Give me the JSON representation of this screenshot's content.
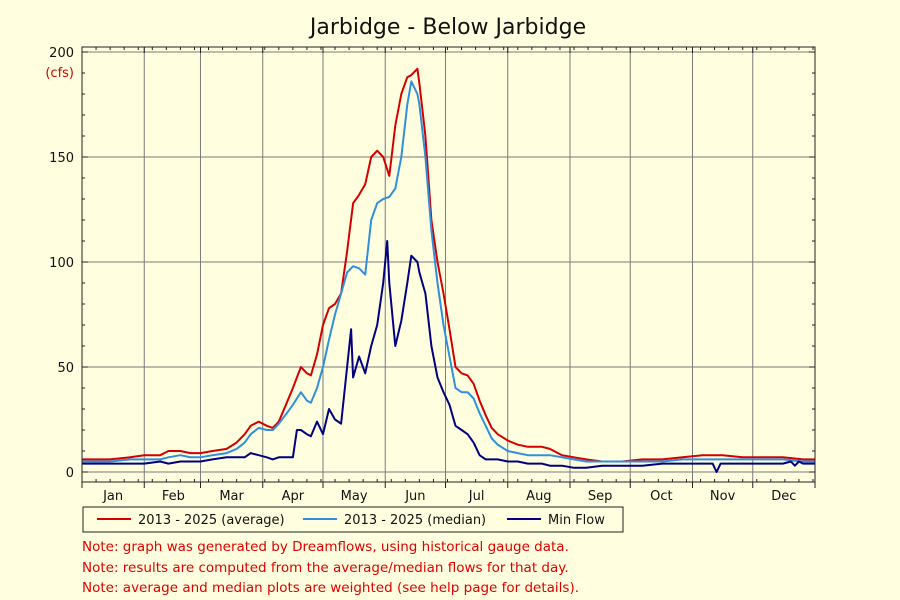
{
  "chart_data": {
    "type": "line",
    "title": "Jarbidge - Below Jarbidge",
    "ylabel": "(cfs)",
    "xlabel": "",
    "ylim": [
      0,
      200
    ],
    "xlim": [
      1,
      366
    ],
    "grid": true,
    "yticks": [
      0,
      50,
      100,
      150,
      200
    ],
    "months": [
      "Jan",
      "Feb",
      "Mar",
      "Apr",
      "May",
      "Jun",
      "Jul",
      "Aug",
      "Sep",
      "Oct",
      "Nov",
      "Dec"
    ],
    "x_unit": "day of year",
    "legend_position": "bottom-left",
    "series": [
      {
        "name": "2013 - 2025 (average)",
        "color": "#d40000",
        "points": [
          [
            1,
            6
          ],
          [
            15,
            6
          ],
          [
            25,
            7
          ],
          [
            32,
            8
          ],
          [
            40,
            8
          ],
          [
            44,
            10
          ],
          [
            50,
            10
          ],
          [
            55,
            9
          ],
          [
            60,
            9
          ],
          [
            66,
            10
          ],
          [
            73,
            11
          ],
          [
            78,
            14
          ],
          [
            82,
            18
          ],
          [
            85,
            22
          ],
          [
            89,
            24
          ],
          [
            93,
            22
          ],
          [
            96,
            21
          ],
          [
            99,
            24
          ],
          [
            103,
            33
          ],
          [
            106,
            40
          ],
          [
            110,
            50
          ],
          [
            113,
            47
          ],
          [
            115,
            46
          ],
          [
            118,
            56
          ],
          [
            121,
            70
          ],
          [
            124,
            78
          ],
          [
            127,
            80
          ],
          [
            130,
            85
          ],
          [
            133,
            105
          ],
          [
            136,
            128
          ],
          [
            139,
            132
          ],
          [
            142,
            137
          ],
          [
            145,
            150
          ],
          [
            148,
            153
          ],
          [
            151,
            150
          ],
          [
            154,
            141
          ],
          [
            157,
            165
          ],
          [
            160,
            180
          ],
          [
            163,
            188
          ],
          [
            165,
            189
          ],
          [
            168,
            192
          ],
          [
            169,
            185
          ],
          [
            172,
            160
          ],
          [
            175,
            120
          ],
          [
            178,
            100
          ],
          [
            181,
            85
          ],
          [
            184,
            68
          ],
          [
            187,
            50
          ],
          [
            190,
            47
          ],
          [
            193,
            46
          ],
          [
            196,
            42
          ],
          [
            199,
            34
          ],
          [
            202,
            27
          ],
          [
            205,
            21
          ],
          [
            208,
            18
          ],
          [
            213,
            15
          ],
          [
            218,
            13
          ],
          [
            223,
            12
          ],
          [
            230,
            12
          ],
          [
            234,
            11
          ],
          [
            240,
            8
          ],
          [
            246,
            7
          ],
          [
            252,
            6
          ],
          [
            260,
            5
          ],
          [
            270,
            5
          ],
          [
            280,
            6
          ],
          [
            290,
            6
          ],
          [
            300,
            7
          ],
          [
            310,
            8
          ],
          [
            320,
            8
          ],
          [
            330,
            7
          ],
          [
            340,
            7
          ],
          [
            350,
            7
          ],
          [
            360,
            6
          ],
          [
            366,
            6
          ]
        ]
      },
      {
        "name": "2013 - 2025 (median)",
        "color": "#2f8fdc",
        "points": [
          [
            1,
            5
          ],
          [
            15,
            5
          ],
          [
            25,
            6
          ],
          [
            32,
            6
          ],
          [
            40,
            6
          ],
          [
            44,
            7
          ],
          [
            50,
            8
          ],
          [
            55,
            7
          ],
          [
            60,
            7
          ],
          [
            66,
            8
          ],
          [
            73,
            9
          ],
          [
            78,
            11
          ],
          [
            82,
            14
          ],
          [
            85,
            18
          ],
          [
            89,
            21
          ],
          [
            93,
            20
          ],
          [
            96,
            20
          ],
          [
            99,
            23
          ],
          [
            103,
            28
          ],
          [
            106,
            32
          ],
          [
            110,
            38
          ],
          [
            113,
            34
          ],
          [
            115,
            33
          ],
          [
            118,
            40
          ],
          [
            121,
            50
          ],
          [
            124,
            63
          ],
          [
            127,
            75
          ],
          [
            130,
            85
          ],
          [
            133,
            95
          ],
          [
            136,
            98
          ],
          [
            139,
            97
          ],
          [
            142,
            94
          ],
          [
            145,
            120
          ],
          [
            148,
            128
          ],
          [
            151,
            130
          ],
          [
            154,
            131
          ],
          [
            157,
            135
          ],
          [
            160,
            150
          ],
          [
            163,
            175
          ],
          [
            165,
            186
          ],
          [
            168,
            180
          ],
          [
            169,
            175
          ],
          [
            172,
            150
          ],
          [
            175,
            115
          ],
          [
            178,
            90
          ],
          [
            181,
            70
          ],
          [
            184,
            55
          ],
          [
            187,
            40
          ],
          [
            190,
            38
          ],
          [
            193,
            38
          ],
          [
            196,
            35
          ],
          [
            199,
            28
          ],
          [
            202,
            22
          ],
          [
            205,
            16
          ],
          [
            208,
            13
          ],
          [
            213,
            10
          ],
          [
            218,
            9
          ],
          [
            223,
            8
          ],
          [
            230,
            8
          ],
          [
            234,
            8
          ],
          [
            240,
            7
          ],
          [
            246,
            6
          ],
          [
            252,
            5
          ],
          [
            260,
            5
          ],
          [
            270,
            5
          ],
          [
            280,
            5
          ],
          [
            290,
            5
          ],
          [
            300,
            6
          ],
          [
            310,
            6
          ],
          [
            320,
            6
          ],
          [
            330,
            6
          ],
          [
            340,
            6
          ],
          [
            350,
            6
          ],
          [
            360,
            5
          ],
          [
            366,
            5
          ]
        ]
      },
      {
        "name": "Min Flow",
        "color": "#000080",
        "points": [
          [
            1,
            4
          ],
          [
            15,
            4
          ],
          [
            25,
            4
          ],
          [
            32,
            4
          ],
          [
            40,
            5
          ],
          [
            44,
            4
          ],
          [
            50,
            5
          ],
          [
            55,
            5
          ],
          [
            60,
            5
          ],
          [
            66,
            6
          ],
          [
            73,
            7
          ],
          [
            78,
            7
          ],
          [
            82,
            7
          ],
          [
            85,
            9
          ],
          [
            89,
            8
          ],
          [
            93,
            7
          ],
          [
            96,
            6
          ],
          [
            99,
            7
          ],
          [
            103,
            7
          ],
          [
            106,
            7
          ],
          [
            108,
            20
          ],
          [
            110,
            20
          ],
          [
            113,
            18
          ],
          [
            115,
            17
          ],
          [
            118,
            24
          ],
          [
            121,
            18
          ],
          [
            124,
            30
          ],
          [
            127,
            25
          ],
          [
            130,
            23
          ],
          [
            133,
            50
          ],
          [
            135,
            68
          ],
          [
            136,
            45
          ],
          [
            139,
            55
          ],
          [
            142,
            47
          ],
          [
            145,
            60
          ],
          [
            148,
            70
          ],
          [
            151,
            90
          ],
          [
            153,
            110
          ],
          [
            154,
            90
          ],
          [
            157,
            60
          ],
          [
            160,
            72
          ],
          [
            163,
            90
          ],
          [
            165,
            103
          ],
          [
            168,
            100
          ],
          [
            169,
            95
          ],
          [
            172,
            85
          ],
          [
            175,
            60
          ],
          [
            178,
            45
          ],
          [
            181,
            38
          ],
          [
            184,
            32
          ],
          [
            187,
            22
          ],
          [
            190,
            20
          ],
          [
            193,
            18
          ],
          [
            196,
            14
          ],
          [
            199,
            8
          ],
          [
            202,
            6
          ],
          [
            205,
            6
          ],
          [
            208,
            6
          ],
          [
            213,
            5
          ],
          [
            218,
            5
          ],
          [
            223,
            4
          ],
          [
            230,
            4
          ],
          [
            234,
            3
          ],
          [
            240,
            3
          ],
          [
            246,
            2
          ],
          [
            252,
            2
          ],
          [
            260,
            3
          ],
          [
            270,
            3
          ],
          [
            280,
            3
          ],
          [
            290,
            4
          ],
          [
            300,
            4
          ],
          [
            310,
            4
          ],
          [
            315,
            4
          ],
          [
            317,
            0
          ],
          [
            319,
            4
          ],
          [
            325,
            4
          ],
          [
            330,
            4
          ],
          [
            340,
            4
          ],
          [
            350,
            4
          ],
          [
            354,
            5
          ],
          [
            356,
            3
          ],
          [
            358,
            5
          ],
          [
            360,
            4
          ],
          [
            366,
            4
          ]
        ]
      }
    ]
  },
  "notes": [
    "Note: graph was generated by Dreamflows, using historical gauge data.",
    "Note: results are computed from the average/median flows for that day.",
    "Note: average and median plots are weighted (see help page for details)."
  ]
}
